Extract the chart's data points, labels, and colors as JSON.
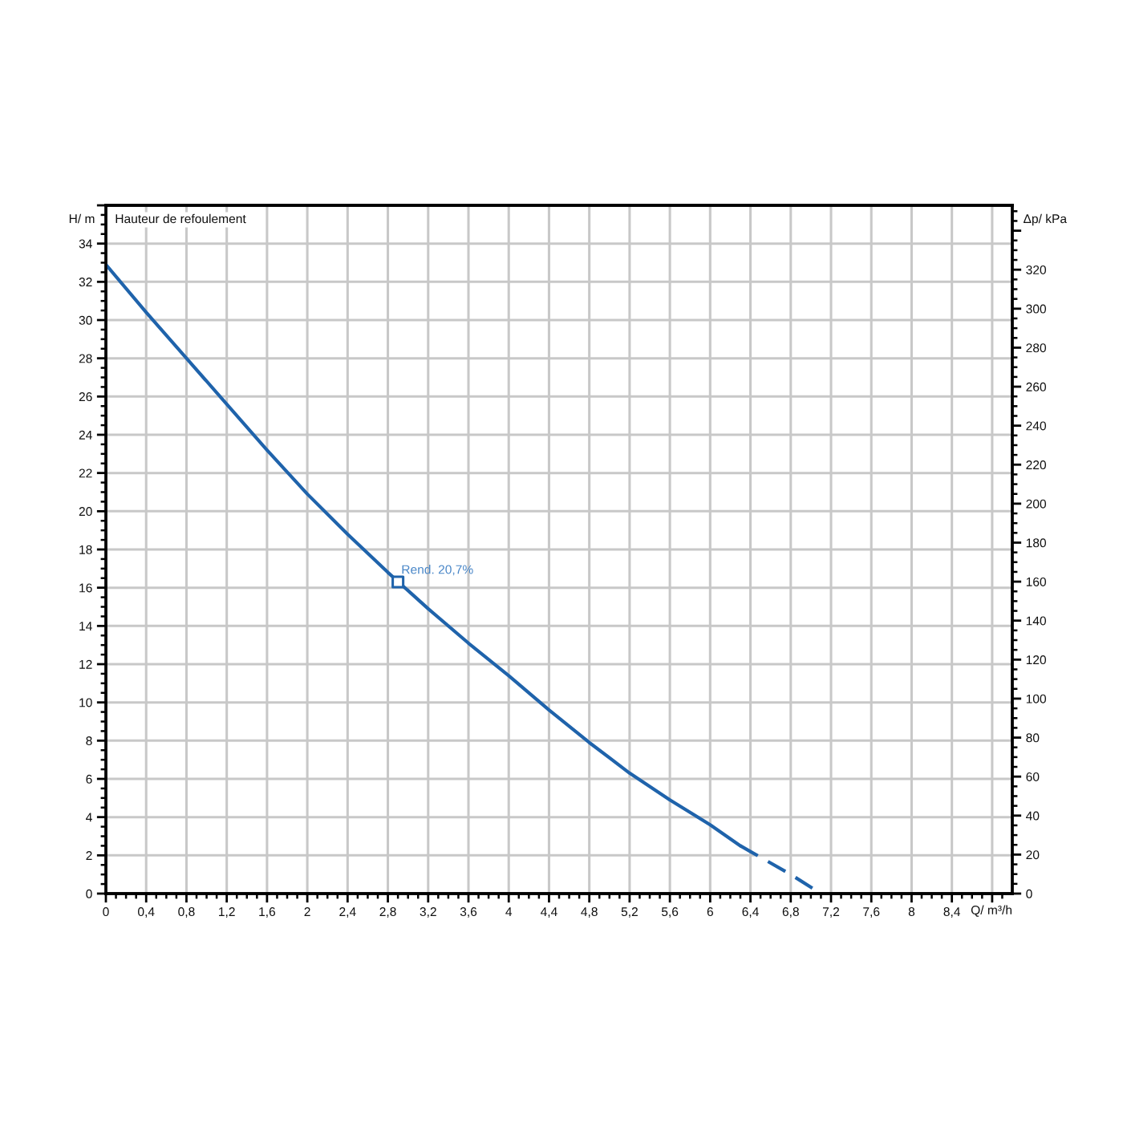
{
  "chart_data": {
    "type": "line",
    "title": "Hauteur de refoulement",
    "xlabel": "Q/ m³/h",
    "ylabel": "H/ m",
    "y2label": "Δp/ kPa",
    "series": [
      {
        "line_style": "solid",
        "color": "#1f63ab",
        "x": [
          0,
          0.4,
          0.8,
          1.2,
          1.6,
          2.0,
          2.4,
          2.8,
          3.2,
          3.6,
          4.0,
          4.4,
          4.8,
          5.2,
          5.6,
          6.0,
          6.3
        ],
        "values": [
          32.9,
          30.4,
          28.0,
          25.6,
          23.2,
          20.9,
          18.8,
          16.8,
          14.9,
          13.1,
          11.4,
          9.6,
          7.9,
          6.3,
          4.9,
          3.6,
          2.5
        ]
      },
      {
        "line_style": "dashed",
        "color": "#1f63ab",
        "x": [
          6.3,
          6.4,
          6.8,
          7.1
        ],
        "values": [
          2.5,
          2.2,
          1.0,
          0
        ]
      },
      {
        "type": "scatter",
        "marker": "square",
        "color": "#1f63ab",
        "x": [
          2.9
        ],
        "values": [
          16.3
        ]
      }
    ],
    "annotations": [
      {
        "text": "Rend. 20,7%",
        "x": 2.9,
        "y": 16.3
      }
    ],
    "xlim": [
      0,
      9
    ],
    "ylim": [
      0,
      36
    ],
    "y2lim": [
      0,
      353
    ],
    "grid": true,
    "xticks": [
      0,
      {
        "value": 0.1,
        "label": null
      },
      {
        "value": 0.2,
        "label": null
      },
      {
        "value": 0.3,
        "label": null
      },
      {
        "value": 0.4,
        "label": "0,4"
      },
      {
        "value": 0.5,
        "label": null
      },
      {
        "value": 0.6,
        "label": null
      },
      {
        "value": 0.7,
        "label": null
      },
      {
        "value": 0.8,
        "label": "0,8"
      },
      {
        "value": 0.9,
        "label": null
      },
      {
        "value": 1.0,
        "label": null
      },
      {
        "value": 1.1,
        "label": null
      },
      {
        "value": 1.2,
        "label": "1,2"
      },
      {
        "value": 1.3,
        "label": null
      },
      {
        "value": 1.4,
        "label": null
      },
      {
        "value": 1.5,
        "label": null
      },
      {
        "value": 1.6,
        "label": "1,6"
      },
      {
        "value": 1.7,
        "label": null
      },
      {
        "value": 1.8,
        "label": null
      },
      {
        "value": 1.9,
        "label": null
      },
      2,
      {
        "value": 2.1,
        "label": null
      },
      {
        "value": 2.2,
        "label": null
      },
      {
        "value": 2.3,
        "label": null
      },
      {
        "value": 2.4,
        "label": "2,4"
      },
      {
        "value": 2.5,
        "label": null
      },
      {
        "value": 2.6,
        "label": null
      },
      {
        "value": 2.7,
        "label": null
      },
      {
        "value": 2.8,
        "label": "2,8"
      },
      {
        "value": 2.9,
        "label": null
      },
      {
        "value": 3.0,
        "label": null
      },
      {
        "value": 3.1,
        "label": null
      },
      {
        "value": 3.2,
        "label": "3,2"
      },
      {
        "value": 3.3,
        "label": null
      },
      {
        "value": 3.4,
        "label": null
      },
      {
        "value": 3.5,
        "label": null
      },
      {
        "value": 3.6,
        "label": "3,6"
      },
      {
        "value": 3.7,
        "label": null
      },
      {
        "value": 3.8,
        "label": null
      },
      {
        "value": 3.9,
        "label": null
      },
      4,
      {
        "value": 4.1,
        "label": null
      },
      {
        "value": 4.2,
        "label": null
      },
      {
        "value": 4.3,
        "label": null
      },
      {
        "value": 4.4,
        "label": "4,4"
      },
      {
        "value": 4.5,
        "label": null
      },
      {
        "value": 4.6,
        "label": null
      },
      {
        "value": 4.7,
        "label": null
      },
      {
        "value": 4.8,
        "label": "4,8"
      },
      {
        "value": 4.9,
        "label": null
      },
      {
        "value": 5.0,
        "label": null
      },
      {
        "value": 5.1,
        "label": null
      },
      {
        "value": 5.2,
        "label": "5,2"
      },
      {
        "value": 5.3,
        "label": null
      },
      {
        "value": 5.4,
        "label": null
      },
      {
        "value": 5.5,
        "label": null
      },
      {
        "value": 5.6,
        "label": "5,6"
      },
      {
        "value": 5.7,
        "label": null
      },
      {
        "value": 5.8,
        "label": null
      },
      {
        "value": 5.9,
        "label": null
      },
      6,
      {
        "value": 6.1,
        "label": null
      },
      {
        "value": 6.2,
        "label": null
      },
      {
        "value": 6.3,
        "label": null
      },
      {
        "value": 6.4,
        "label": "6,4"
      },
      {
        "value": 6.5,
        "label": null
      },
      {
        "value": 6.6,
        "label": null
      },
      {
        "value": 6.7,
        "label": null
      },
      {
        "value": 6.8,
        "label": "6,8"
      },
      {
        "value": 6.9,
        "label": null
      },
      {
        "value": 7.0,
        "label": null
      },
      {
        "value": 7.1,
        "label": null
      },
      {
        "value": 7.2,
        "label": "7,2"
      },
      {
        "value": 7.3,
        "label": null
      },
      {
        "value": 7.4,
        "label": null
      },
      {
        "value": 7.5,
        "label": null
      },
      {
        "value": 7.6,
        "label": "7,6"
      },
      {
        "value": 7.7,
        "label": null
      },
      {
        "value": 7.8,
        "label": null
      },
      {
        "value": 7.9,
        "label": null
      },
      8,
      {
        "value": 8.1,
        "label": null
      },
      {
        "value": 8.2,
        "label": null
      },
      {
        "value": 8.3,
        "label": null
      },
      {
        "value": 8.4,
        "label": "8,4"
      },
      {
        "value": 8.5,
        "label": null
      },
      {
        "value": 8.6,
        "label": null
      },
      {
        "value": 8.7,
        "label": null
      },
      {
        "value": 8.8,
        "label": null
      },
      {
        "value": 8.9,
        "label": null
      }
    ],
    "yticks": [
      0,
      {
        "value": 0.5,
        "label": null
      },
      {
        "value": 1,
        "label": null
      },
      {
        "value": 1.5,
        "label": null
      },
      2,
      {
        "value": 2.5,
        "label": null
      },
      {
        "value": 3,
        "label": null
      },
      {
        "value": 3.5,
        "label": null
      },
      4,
      {
        "value": 4.5,
        "label": null
      },
      {
        "value": 5,
        "label": null
      },
      {
        "value": 5.5,
        "label": null
      },
      6,
      {
        "value": 6.5,
        "label": null
      },
      {
        "value": 7,
        "label": null
      },
      {
        "value": 7.5,
        "label": null
      },
      8,
      {
        "value": 8.5,
        "label": null
      },
      {
        "value": 9,
        "label": null
      },
      {
        "value": 9.5,
        "label": null
      },
      10,
      {
        "value": 10.5,
        "label": null
      },
      {
        "value": 11,
        "label": null
      },
      {
        "value": 11.5,
        "label": null
      },
      12,
      {
        "value": 12.5,
        "label": null
      },
      {
        "value": 13,
        "label": null
      },
      {
        "value": 13.5,
        "label": null
      },
      14,
      {
        "value": 14.5,
        "label": null
      },
      {
        "value": 15,
        "label": null
      },
      {
        "value": 15.5,
        "label": null
      },
      16,
      {
        "value": 16.5,
        "label": null
      },
      {
        "value": 17,
        "label": null
      },
      {
        "value": 17.5,
        "label": null
      },
      18,
      {
        "value": 18.5,
        "label": null
      },
      {
        "value": 19,
        "label": null
      },
      {
        "value": 19.5,
        "label": null
      },
      20,
      {
        "value": 20.5,
        "label": null
      },
      {
        "value": 21,
        "label": null
      },
      {
        "value": 21.5,
        "label": null
      },
      22,
      {
        "value": 22.5,
        "label": null
      },
      {
        "value": 23,
        "label": null
      },
      {
        "value": 23.5,
        "label": null
      },
      24,
      {
        "value": 24.5,
        "label": null
      },
      {
        "value": 25,
        "label": null
      },
      {
        "value": 25.5,
        "label": null
      },
      26,
      {
        "value": 26.5,
        "label": null
      },
      {
        "value": 27,
        "label": null
      },
      {
        "value": 27.5,
        "label": null
      },
      28,
      {
        "value": 28.5,
        "label": null
      },
      {
        "value": 29,
        "label": null
      },
      {
        "value": 29.5,
        "label": null
      },
      30,
      {
        "value": 30.5,
        "label": null
      },
      {
        "value": 31,
        "label": null
      },
      {
        "value": 31.5,
        "label": null
      },
      32,
      {
        "value": 32.5,
        "label": null
      },
      {
        "value": 33,
        "label": null
      },
      {
        "value": 33.5,
        "label": null
      },
      34,
      {
        "value": 34.5,
        "label": null
      },
      {
        "value": 35,
        "label": null
      },
      {
        "value": 35.5,
        "label": null
      },
      {
        "value": 36,
        "label": null
      }
    ],
    "y2ticks": [
      0,
      {
        "value": 5,
        "label": null
      },
      {
        "value": 10,
        "label": null
      },
      {
        "value": 15,
        "label": null
      },
      20,
      {
        "value": 25,
        "label": null
      },
      {
        "value": 30,
        "label": null
      },
      {
        "value": 35,
        "label": null
      },
      40,
      {
        "value": 45,
        "label": null
      },
      {
        "value": 50,
        "label": null
      },
      {
        "value": 55,
        "label": null
      },
      60,
      {
        "value": 65,
        "label": null
      },
      {
        "value": 70,
        "label": null
      },
      {
        "value": 75,
        "label": null
      },
      80,
      {
        "value": 85,
        "label": null
      },
      {
        "value": 90,
        "label": null
      },
      {
        "value": 95,
        "label": null
      },
      100,
      {
        "value": 105,
        "label": null
      },
      {
        "value": 110,
        "label": null
      },
      {
        "value": 115,
        "label": null
      },
      120,
      {
        "value": 125,
        "label": null
      },
      {
        "value": 130,
        "label": null
      },
      {
        "value": 135,
        "label": null
      },
      140,
      {
        "value": 145,
        "label": null
      },
      {
        "value": 150,
        "label": null
      },
      {
        "value": 155,
        "label": null
      },
      160,
      {
        "value": 165,
        "label": null
      },
      {
        "value": 170,
        "label": null
      },
      {
        "value": 175,
        "label": null
      },
      180,
      {
        "value": 185,
        "label": null
      },
      {
        "value": 190,
        "label": null
      },
      {
        "value": 195,
        "label": null
      },
      200,
      {
        "value": 205,
        "label": null
      },
      {
        "value": 210,
        "label": null
      },
      {
        "value": 215,
        "label": null
      },
      220,
      {
        "value": 225,
        "label": null
      },
      {
        "value": 230,
        "label": null
      },
      {
        "value": 235,
        "label": null
      },
      240,
      {
        "value": 245,
        "label": null
      },
      {
        "value": 250,
        "label": null
      },
      {
        "value": 255,
        "label": null
      },
      260,
      {
        "value": 265,
        "label": null
      },
      {
        "value": 270,
        "label": null
      },
      {
        "value": 275,
        "label": null
      },
      280,
      {
        "value": 285,
        "label": null
      },
      {
        "value": 290,
        "label": null
      },
      {
        "value": 295,
        "label": null
      },
      300,
      {
        "value": 305,
        "label": null
      },
      {
        "value": 310,
        "label": null
      },
      {
        "value": 315,
        "label": null
      },
      320,
      {
        "value": 325,
        "label": null
      },
      {
        "value": 330,
        "label": null
      },
      {
        "value": 335,
        "label": null
      },
      {
        "value": 340,
        "label": null
      },
      {
        "value": 345,
        "label": null
      },
      {
        "value": 350,
        "label": null
      }
    ]
  }
}
